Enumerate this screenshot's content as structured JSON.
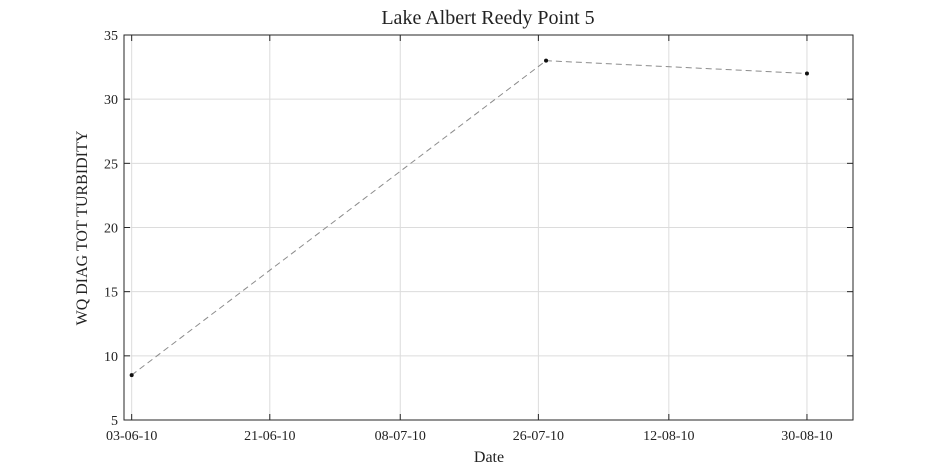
{
  "chart_data": {
    "type": "line",
    "title": "Lake Albert Reedy Point 5",
    "xlabel": "Date",
    "ylabel": "WQ DIAG TOT TURBIDITY",
    "x_type": "date",
    "xlim": [
      "2010-06-02",
      "2010-09-05"
    ],
    "ylim": [
      5,
      35
    ],
    "x_ticks": [
      {
        "date": "2010-06-03",
        "label": "03-06-10"
      },
      {
        "date": "2010-06-21",
        "label": "21-06-10"
      },
      {
        "date": "2010-07-08",
        "label": "08-07-10"
      },
      {
        "date": "2010-07-26",
        "label": "26-07-10"
      },
      {
        "date": "2010-08-12",
        "label": "12-08-10"
      },
      {
        "date": "2010-08-30",
        "label": "30-08-10"
      }
    ],
    "y_ticks": [
      5,
      10,
      15,
      20,
      25,
      30,
      35
    ],
    "grid": true,
    "series": [
      {
        "x": [
          "2010-06-03",
          "2010-07-27",
          "2010-08-30"
        ],
        "y": [
          8.5,
          33,
          32
        ],
        "line_style": "dashed",
        "color": "#8c8c8c",
        "marker_color": "#111111"
      }
    ]
  }
}
